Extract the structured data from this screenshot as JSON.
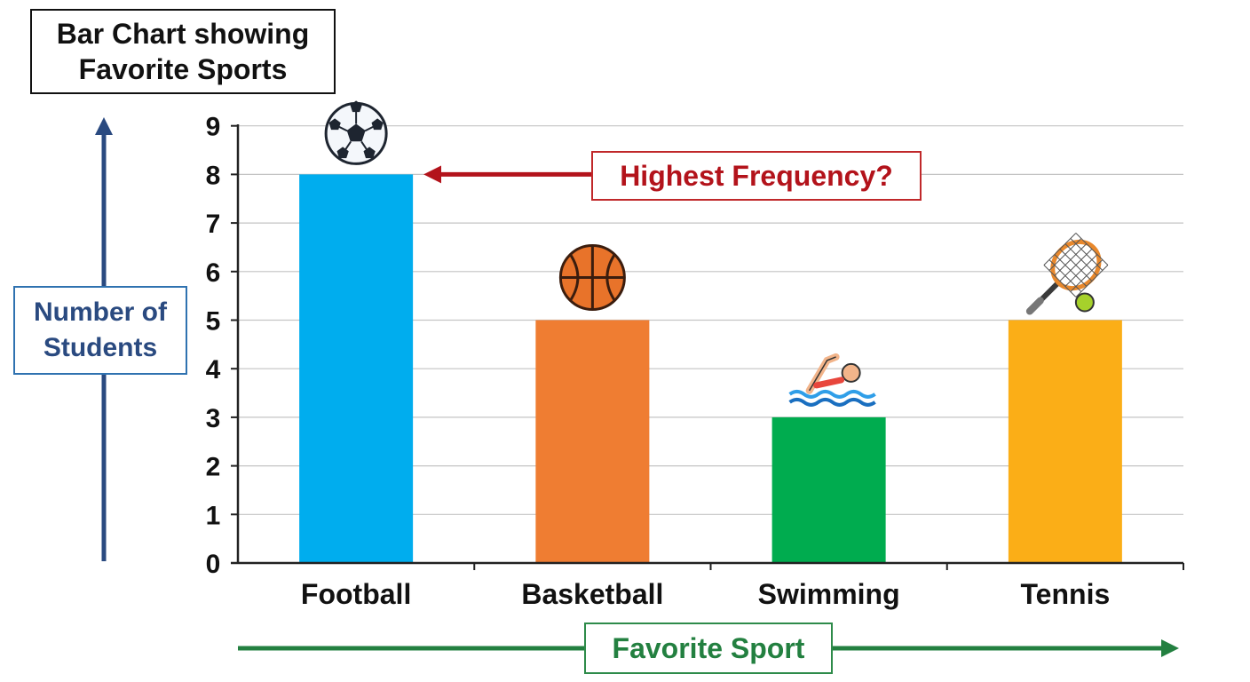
{
  "chart_data": {
    "type": "bar",
    "title_lines": [
      "Bar Chart showing",
      "Favorite Sports"
    ],
    "xlabel": "Favorite Sport",
    "ylabel_lines": [
      "Number of",
      "Students"
    ],
    "categories": [
      "Football",
      "Basketball",
      "Swimming",
      "Tennis"
    ],
    "values": [
      8,
      5,
      3,
      5
    ],
    "colors": [
      "#00adee",
      "#ef7d32",
      "#00ac4f",
      "#fbae17"
    ],
    "icons": [
      "soccer-ball-icon",
      "basketball-icon",
      "swimmer-icon",
      "tennis-racket-icon"
    ],
    "ylim": [
      0,
      9
    ],
    "yticks": [
      "0",
      "1",
      "2",
      "3",
      "4",
      "5",
      "6",
      "7",
      "8",
      "9"
    ],
    "grid": true,
    "annotation": {
      "text": "Highest Frequency?",
      "target_category": "Football",
      "color": "#b3131b"
    },
    "axis_arrow_colors": {
      "y": "#2a4a80",
      "x": "#238040"
    }
  }
}
